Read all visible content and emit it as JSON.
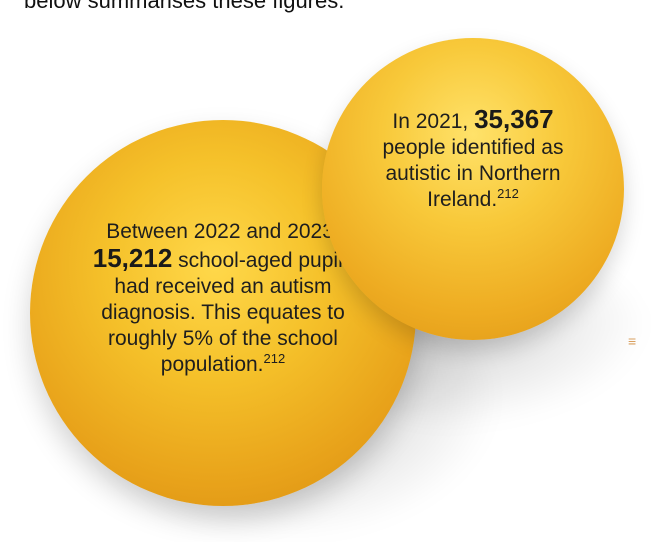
{
  "intro": {
    "text": "below summarises these figures."
  },
  "bubble_small": {
    "before_number": "In 2021, ",
    "number": "35,367",
    "after_number": " people identified as autistic in Northern Ireland.",
    "ref": "212"
  },
  "bubble_large": {
    "before_number": "Between 2022 and 2023, ",
    "number": "15,212",
    "after_number": " school-aged pupils had received an autism diagnosis. This equates to roughly 5% of the school population.",
    "ref": "212"
  },
  "colors": {
    "bubble_light": "#ffd84a",
    "bubble_mid": "#f5c12a",
    "bubble_dark": "#d48a10"
  }
}
